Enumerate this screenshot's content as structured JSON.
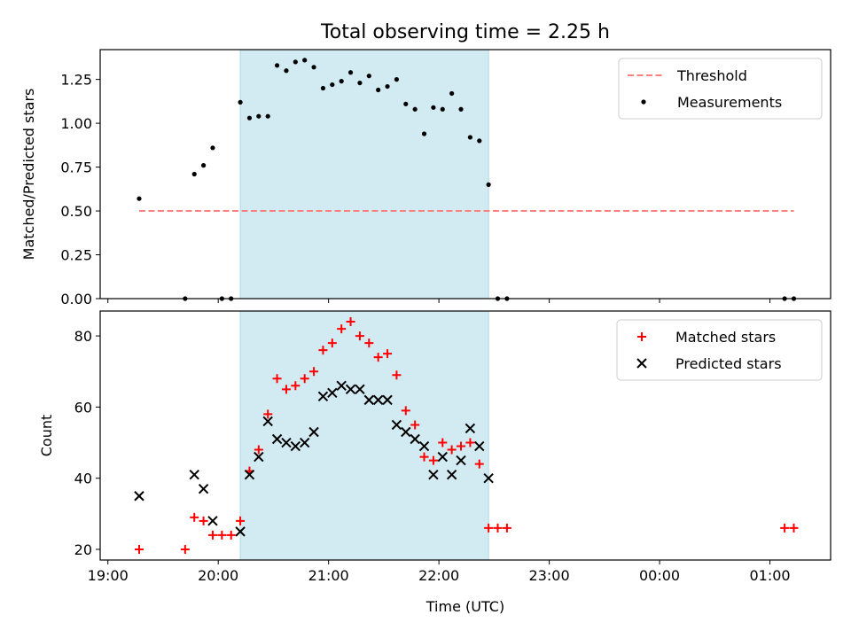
{
  "figure": {
    "title": "Total observing time = 2.25 h"
  },
  "chart_data": [
    {
      "type": "scatter",
      "ylabel": "Matched/Predicted stars",
      "xlabel": "",
      "ylim": [
        0,
        1.42
      ],
      "xlim_hours": [
        18.93,
        25.55
      ],
      "x_ticks": [
        "19:00",
        "20:00",
        "21:00",
        "22:00",
        "23:00",
        "00:00",
        "01:00"
      ],
      "x_tick_labels_shown": false,
      "y_ticks": [
        "0.00",
        "0.25",
        "0.50",
        "0.75",
        "1.00",
        "1.25"
      ],
      "shaded_interval": [
        "20:12",
        "22:27"
      ],
      "shaded_color": "#add8e6",
      "legend_position": "upper right",
      "grid": false,
      "series": [
        {
          "name": "Threshold",
          "kind": "line",
          "style": "dashed",
          "color": "#ff7f7f",
          "points": [
            [
              "19:17",
              0.5
            ],
            [
              "25:13",
              0.5
            ]
          ]
        },
        {
          "name": "Measurements",
          "kind": "scatter",
          "color": "#000000",
          "points": [
            [
              "19:17",
              0.57
            ],
            [
              "19:42",
              0.0
            ],
            [
              "19:47",
              0.71
            ],
            [
              "19:52",
              0.76
            ],
            [
              "19:57",
              0.86
            ],
            [
              "20:02",
              0.0
            ],
            [
              "20:07",
              0.0
            ],
            [
              "20:12",
              1.12
            ],
            [
              "20:17",
              1.03
            ],
            [
              "20:22",
              1.04
            ],
            [
              "20:27",
              1.04
            ],
            [
              "20:32",
              1.33
            ],
            [
              "20:37",
              1.3
            ],
            [
              "20:42",
              1.35
            ],
            [
              "20:47",
              1.36
            ],
            [
              "20:52",
              1.32
            ],
            [
              "20:57",
              1.2
            ],
            [
              "21:02",
              1.22
            ],
            [
              "21:07",
              1.24
            ],
            [
              "21:12",
              1.29
            ],
            [
              "21:17",
              1.23
            ],
            [
              "21:22",
              1.27
            ],
            [
              "21:27",
              1.19
            ],
            [
              "21:32",
              1.21
            ],
            [
              "21:37",
              1.25
            ],
            [
              "21:42",
              1.11
            ],
            [
              "21:47",
              1.08
            ],
            [
              "21:52",
              0.94
            ],
            [
              "21:57",
              1.09
            ],
            [
              "22:02",
              1.08
            ],
            [
              "22:07",
              1.17
            ],
            [
              "22:12",
              1.08
            ],
            [
              "22:17",
              0.92
            ],
            [
              "22:22",
              0.9
            ],
            [
              "22:27",
              0.65
            ],
            [
              "22:32",
              0.0
            ],
            [
              "22:37",
              0.0
            ],
            [
              "25:08",
              0.0
            ],
            [
              "25:13",
              0.0
            ]
          ]
        }
      ]
    },
    {
      "type": "scatter",
      "ylabel": "Count",
      "xlabel": "Time (UTC)",
      "ylim": [
        17,
        87
      ],
      "xlim_hours": [
        18.93,
        25.55
      ],
      "x_ticks": [
        "19:00",
        "20:00",
        "21:00",
        "22:00",
        "23:00",
        "00:00",
        "01:00"
      ],
      "y_ticks": [
        "20",
        "40",
        "60",
        "80"
      ],
      "shaded_interval": [
        "20:12",
        "22:27"
      ],
      "shaded_color": "#add8e6",
      "legend_position": "upper right",
      "grid": false,
      "series": [
        {
          "name": "Matched stars",
          "marker": "+",
          "color": "#ff0000",
          "points": [
            [
              "19:17",
              20
            ],
            [
              "19:42",
              20
            ],
            [
              "19:47",
              29
            ],
            [
              "19:52",
              28
            ],
            [
              "19:57",
              24
            ],
            [
              "20:02",
              24
            ],
            [
              "20:07",
              24
            ],
            [
              "20:12",
              28
            ],
            [
              "20:17",
              42
            ],
            [
              "20:22",
              48
            ],
            [
              "20:27",
              58
            ],
            [
              "20:32",
              68
            ],
            [
              "20:37",
              65
            ],
            [
              "20:42",
              66
            ],
            [
              "20:47",
              68
            ],
            [
              "20:52",
              70
            ],
            [
              "20:57",
              76
            ],
            [
              "21:02",
              78
            ],
            [
              "21:07",
              82
            ],
            [
              "21:12",
              84
            ],
            [
              "21:17",
              80
            ],
            [
              "21:22",
              78
            ],
            [
              "21:27",
              74
            ],
            [
              "21:32",
              75
            ],
            [
              "21:37",
              69
            ],
            [
              "21:42",
              59
            ],
            [
              "21:47",
              55
            ],
            [
              "21:52",
              46
            ],
            [
              "21:57",
              45
            ],
            [
              "22:02",
              50
            ],
            [
              "22:07",
              48
            ],
            [
              "22:12",
              49
            ],
            [
              "22:17",
              50
            ],
            [
              "22:22",
              44
            ],
            [
              "22:27",
              26
            ],
            [
              "22:32",
              26
            ],
            [
              "22:37",
              26
            ],
            [
              "25:08",
              26
            ],
            [
              "25:13",
              26
            ]
          ]
        },
        {
          "name": "Predicted stars",
          "marker": "x",
          "color": "#000000",
          "points": [
            [
              "19:17",
              35
            ],
            [
              "19:47",
              41
            ],
            [
              "19:52",
              37
            ],
            [
              "19:57",
              28
            ],
            [
              "20:12",
              25
            ],
            [
              "20:17",
              41
            ],
            [
              "20:22",
              46
            ],
            [
              "20:27",
              56
            ],
            [
              "20:32",
              51
            ],
            [
              "20:37",
              50
            ],
            [
              "20:42",
              49
            ],
            [
              "20:47",
              50
            ],
            [
              "20:52",
              53
            ],
            [
              "20:57",
              63
            ],
            [
              "21:02",
              64
            ],
            [
              "21:07",
              66
            ],
            [
              "21:12",
              65
            ],
            [
              "21:17",
              65
            ],
            [
              "21:22",
              62
            ],
            [
              "21:27",
              62
            ],
            [
              "21:32",
              62
            ],
            [
              "21:37",
              55
            ],
            [
              "21:42",
              53
            ],
            [
              "21:47",
              51
            ],
            [
              "21:52",
              49
            ],
            [
              "21:57",
              41
            ],
            [
              "22:02",
              46
            ],
            [
              "22:07",
              41
            ],
            [
              "22:12",
              45
            ],
            [
              "22:17",
              54
            ],
            [
              "22:22",
              49
            ],
            [
              "22:27",
              40
            ]
          ]
        }
      ]
    }
  ]
}
